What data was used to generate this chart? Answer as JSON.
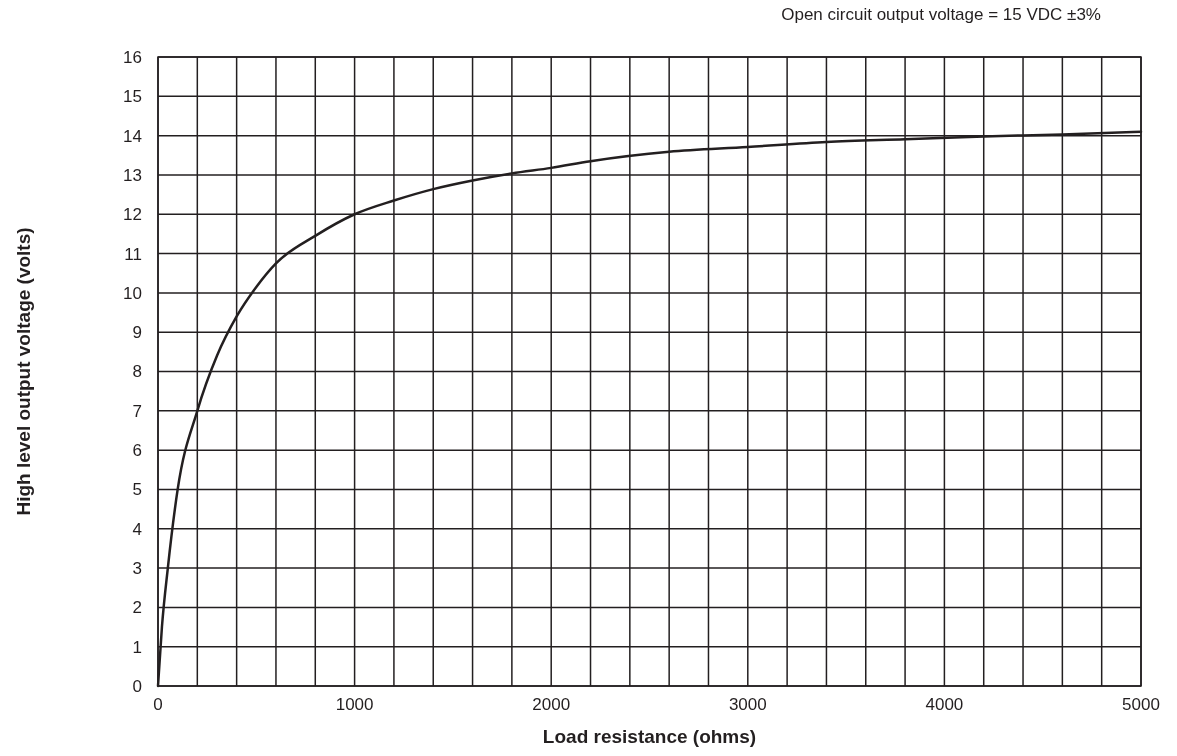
{
  "chart_data": {
    "type": "line",
    "xlabel": "Load resistance (ohms)",
    "ylabel": "High level output voltage (volts)",
    "annotations": [
      "Open circuit output voltage = 15 VDC ±3%"
    ],
    "xlim": [
      0,
      5000
    ],
    "ylim": [
      0,
      16
    ],
    "xticks": [
      0,
      {
        "value": 200,
        "label": null
      },
      {
        "value": 400,
        "label": null
      },
      {
        "value": 600,
        "label": null
      },
      {
        "value": 800,
        "label": null
      },
      1000,
      {
        "value": 1200,
        "label": null
      },
      {
        "value": 1400,
        "label": null
      },
      {
        "value": 1600,
        "label": null
      },
      {
        "value": 1800,
        "label": null
      },
      2000,
      {
        "value": 2200,
        "label": null
      },
      {
        "value": 2400,
        "label": null
      },
      {
        "value": 2600,
        "label": null
      },
      {
        "value": 2800,
        "label": null
      },
      3000,
      {
        "value": 3200,
        "label": null
      },
      {
        "value": 3400,
        "label": null
      },
      {
        "value": 3600,
        "label": null
      },
      {
        "value": 3800,
        "label": null
      },
      4000,
      {
        "value": 4200,
        "label": null
      },
      {
        "value": 4400,
        "label": null
      },
      {
        "value": 4600,
        "label": null
      },
      {
        "value": 4800,
        "label": null
      },
      5000
    ],
    "yticks": [
      0,
      1,
      2,
      3,
      4,
      5,
      6,
      7,
      8,
      9,
      10,
      11,
      12,
      13,
      14,
      15,
      16
    ],
    "grid": true,
    "marker": "none",
    "line_style": "solid",
    "x": [
      0,
      20,
      50,
      100,
      200,
      300,
      400,
      500,
      600,
      800,
      1000,
      1200,
      1400,
      1600,
      1800,
      2000,
      2200,
      2600,
      3000,
      3400,
      3800,
      4200,
      4600,
      5000
    ],
    "series": [
      {
        "color": "#231f20",
        "values": [
          0,
          1.5,
          3.0,
          5.0,
          7.0,
          8.4,
          9.4,
          10.15,
          10.75,
          11.45,
          12.0,
          12.35,
          12.64,
          12.86,
          13.04,
          13.18,
          13.35,
          13.59,
          13.71,
          13.84,
          13.91,
          13.98,
          14.03,
          14.1
        ]
      }
    ]
  }
}
